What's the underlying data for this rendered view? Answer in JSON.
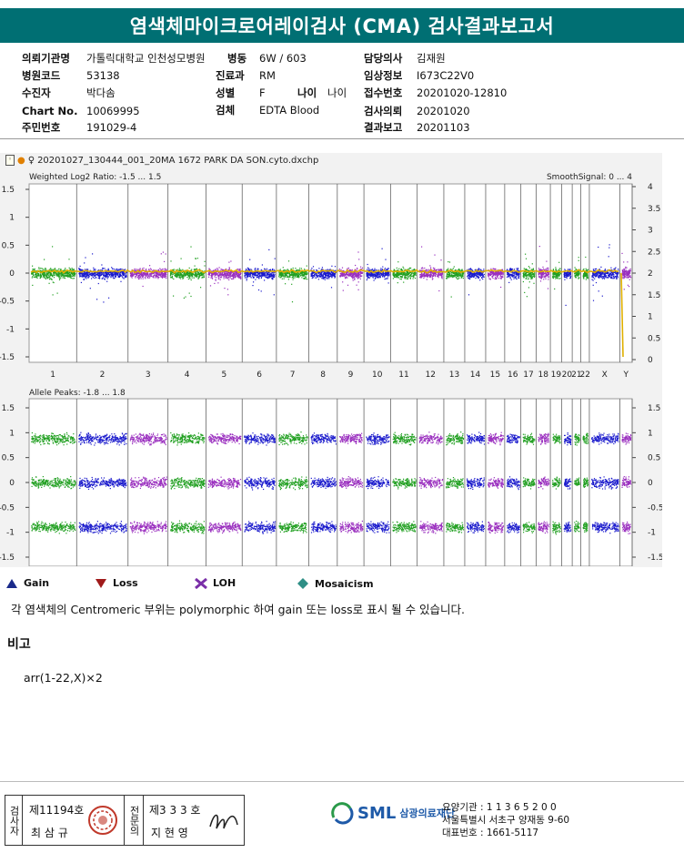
{
  "title": "염색체마이크로어레이검사 (CMA) 검사결과보고서",
  "info": {
    "hospital_label": "의뢰기관명",
    "hospital": "가톨릭대학교 인천성모병원",
    "ward_label": "병동",
    "ward": "6W / 603",
    "doctor_label": "담당의사",
    "doctor": "김재원",
    "code_label": "병원코드",
    "code": "53138",
    "dept_label": "진료과",
    "dept": "RM",
    "clinical_label": "임상정보",
    "clinical": "I673C22V0",
    "patient_label": "수진자",
    "patient": "박다솜",
    "sex_label": "성별",
    "sex": "F",
    "age_label": "나이",
    "age": "나이",
    "receipt_label": "접수번호",
    "receipt": "20201020-12810",
    "chart_label": "Chart No.",
    "chart": "10069995",
    "specimen_label": "검체",
    "specimen": "EDTA Blood",
    "request_label": "검사의뢰",
    "request": "20201020",
    "order_label": "주민번호",
    "order": "191029-4",
    "report_label": "결과보고",
    "report": "20201103"
  },
  "panel": {
    "filename": "20201027_130444_001_20MA 1672 PARK DA SON.cyto.dxchp",
    "top_title": "Weighted Log2 Ratio: -1.5 ... 1.5",
    "smooth": "SmoothSignal: 0 ... 4",
    "bottom_title": "Allele Peaks: -1.8 ... 1.8",
    "left_ticks_top": [
      "1.5",
      "1",
      "0.5",
      "0",
      "-0.5",
      "-1",
      "-1.5"
    ],
    "right_ticks_top": [
      "4",
      "3.5",
      "3",
      "2.5",
      "2",
      "1.5",
      "1",
      "0.5",
      "0"
    ],
    "left_ticks_bottom": [
      "1.5",
      "1",
      "0.5",
      "0",
      "-0.5",
      "-1",
      "-1.5"
    ],
    "right_ticks_bottom": [
      "1.5",
      "1",
      "0.5",
      "0",
      "-0.5",
      "-1",
      "-1.5"
    ],
    "chromosomes": [
      "1",
      "2",
      "3",
      "4",
      "5",
      "6",
      "7",
      "8",
      "9",
      "10",
      "11",
      "12",
      "13",
      "14",
      "15",
      "16",
      "17",
      "18",
      "19",
      "20",
      "21",
      "22",
      "X",
      "Y"
    ]
  },
  "legend": {
    "gain": "Gain",
    "loss": "Loss",
    "loh": "LOH",
    "mosaicism": "Mosaicism"
  },
  "colors": {
    "gain": "#1a2a8a",
    "loss": "#a01b1b",
    "loh": "#7a2fa8",
    "mosaicism": "#2f8f86",
    "green": "#22a022",
    "blue": "#1a1acc",
    "purple": "#9a2fbf",
    "yellow": "#e0b000",
    "header": "#006f73"
  },
  "note": "각 염색체의 Centromeric 부위는 polymorphic 하여 gain 또는 loss로 표시 될 수 있습니다.",
  "remark_title": "비고",
  "karyotype": "arr(1-22,X)×2",
  "footer": {
    "examiner_label": "검사자",
    "examiner_no": "제11194호",
    "examiner_name": "최 삼 규",
    "doctor_label": "전문의",
    "doctor_no": "제3 3 3 호",
    "doctor_name": "지 현 영",
    "org_name": "삼광의료재단",
    "logo": "SML",
    "inst_code": "요양기관 : 1 1 3 6 5 2 0 0",
    "address": "서울특별시 서초구 양재동 9-60",
    "phone": "대표번호 : 1661-5117"
  }
}
